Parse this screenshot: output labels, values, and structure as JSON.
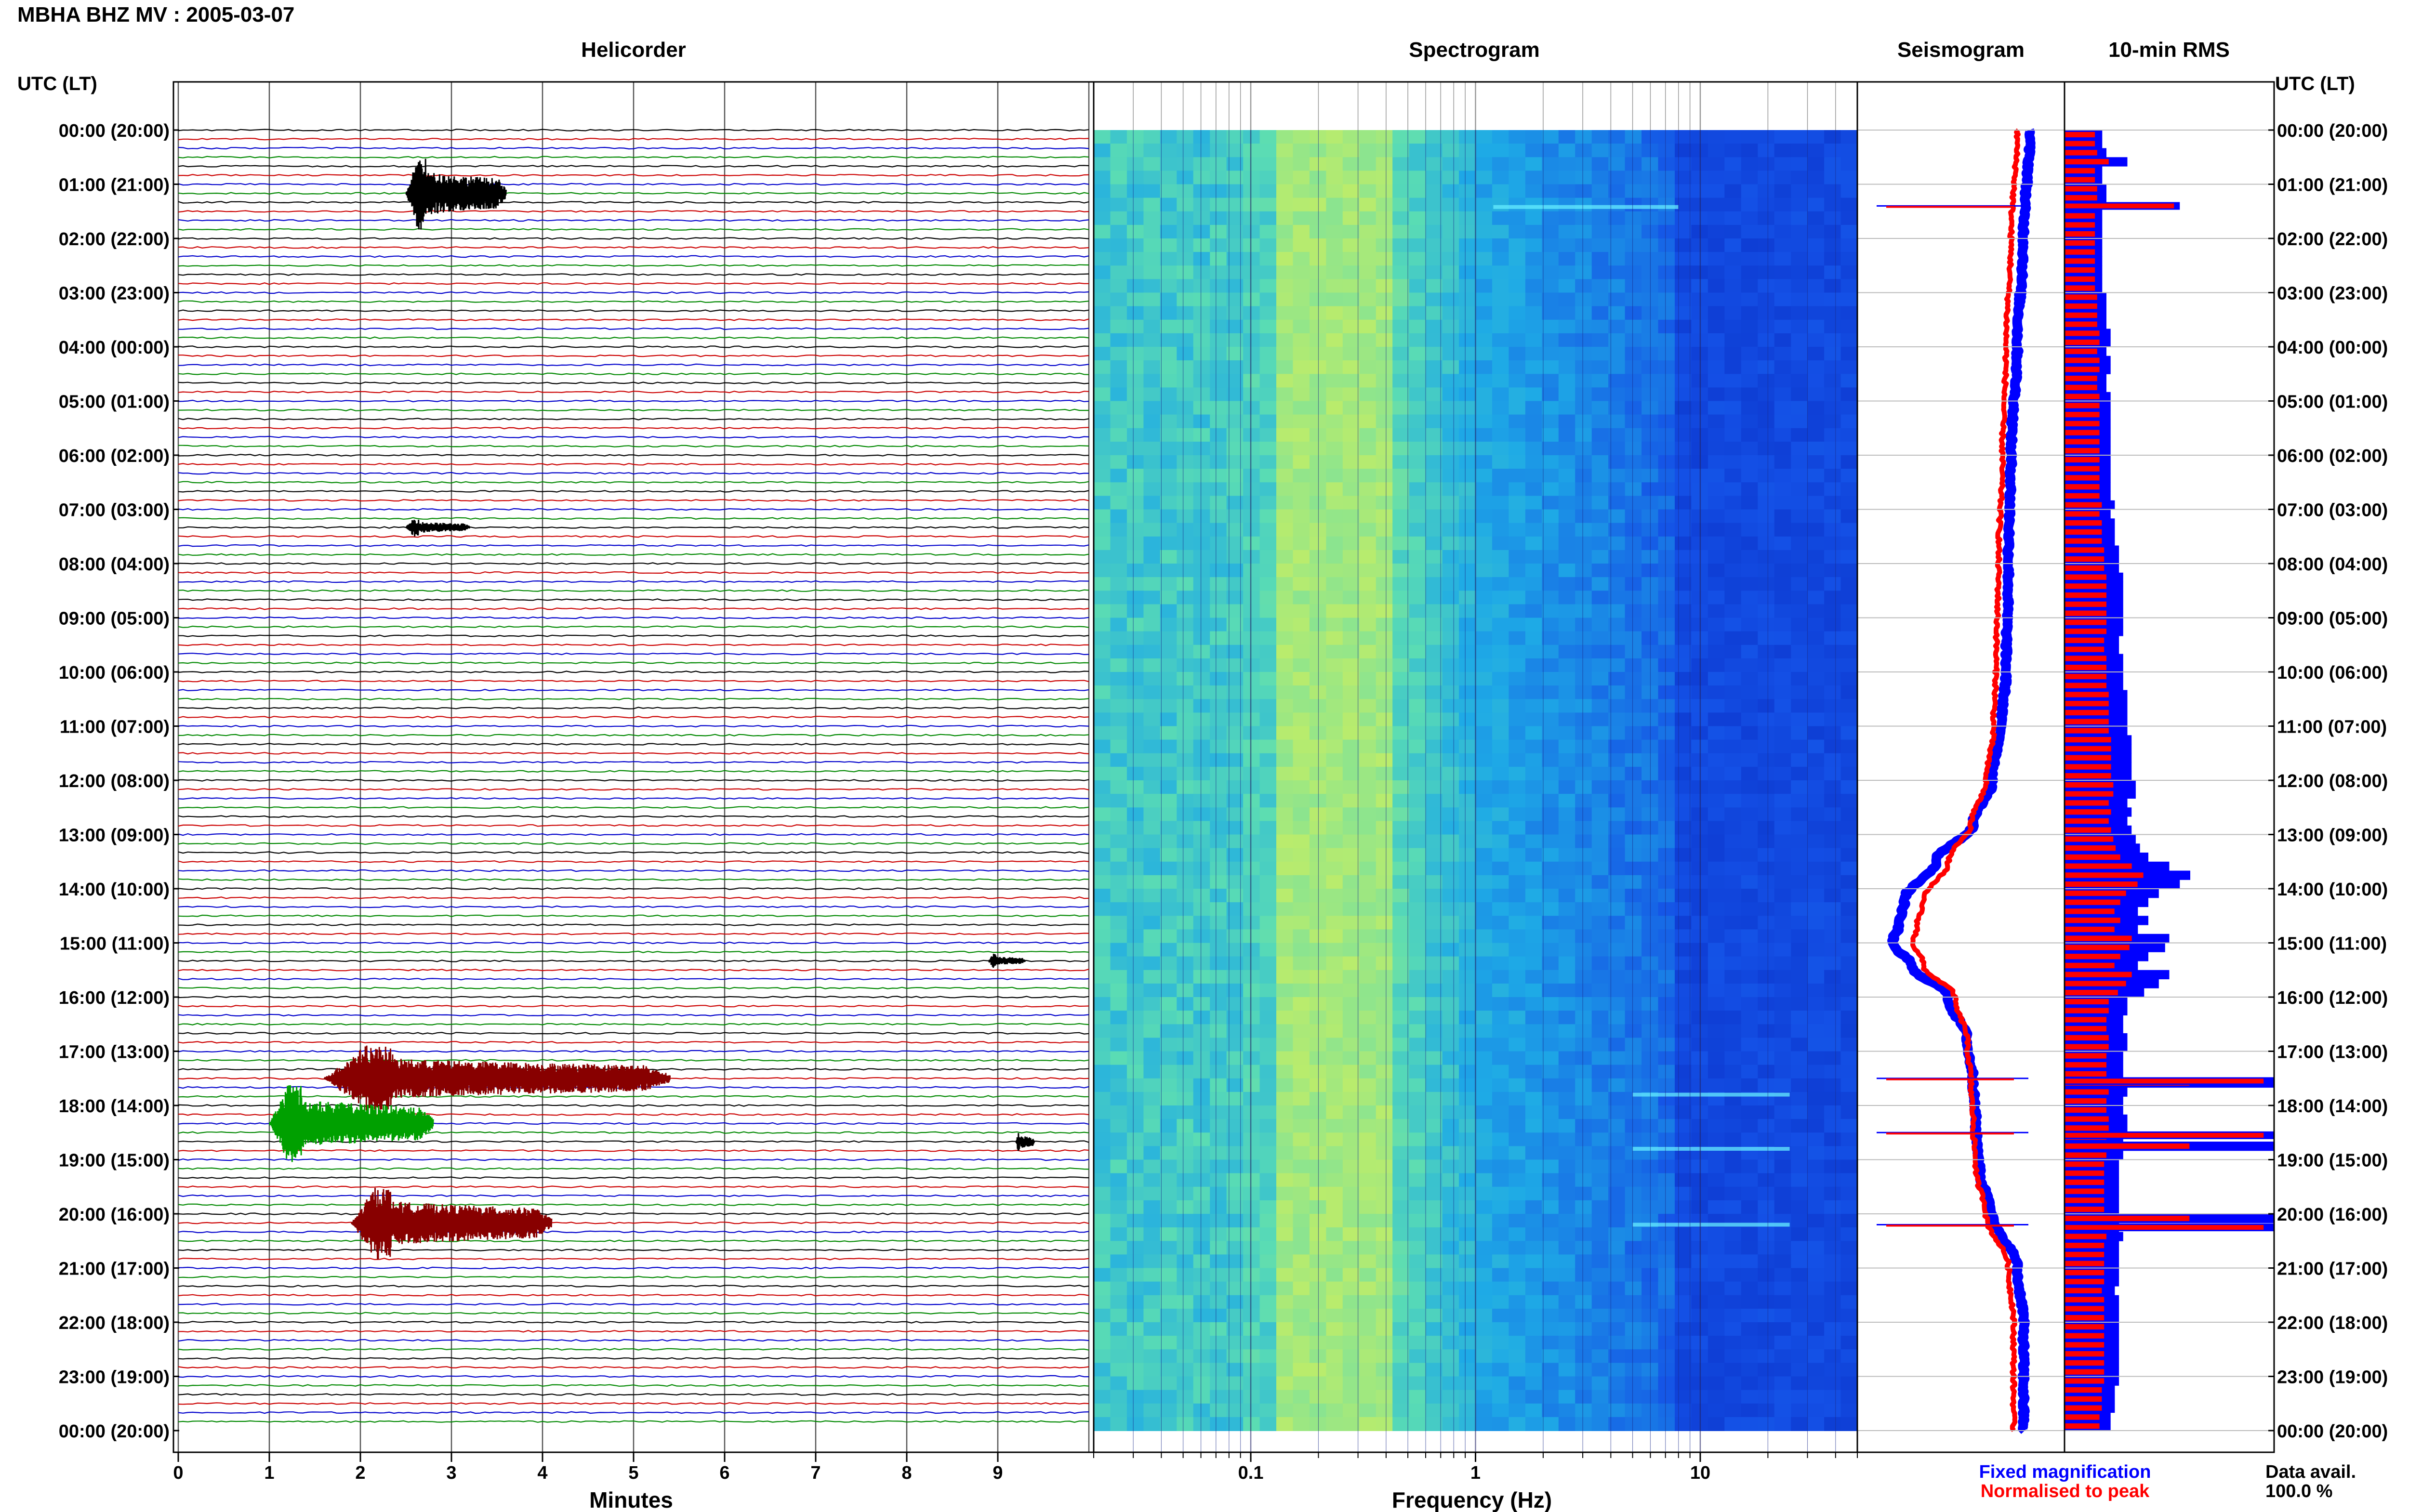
{
  "header": {
    "title": "MBHA BHZ MV : 2005-03-07"
  },
  "panels": {
    "helicorder": {
      "title": "Helicorder",
      "xlabel": "Minutes"
    },
    "spectrogram": {
      "title": "Spectrogram",
      "xlabel": "Frequency (Hz)"
    },
    "seismogram": {
      "title": "Seismogram"
    },
    "rms": {
      "title": "10-min RMS"
    }
  },
  "axes": {
    "left_label": "UTC (LT)",
    "right_label": "UTC (LT)",
    "time_ticks": [
      "00:00 (20:00)",
      "01:00 (21:00)",
      "02:00 (22:00)",
      "03:00 (23:00)",
      "04:00 (00:00)",
      "05:00 (01:00)",
      "06:00 (02:00)",
      "07:00 (03:00)",
      "08:00 (04:00)",
      "09:00 (05:00)",
      "10:00 (06:00)",
      "11:00 (07:00)",
      "12:00 (08:00)",
      "13:00 (09:00)",
      "14:00 (10:00)",
      "15:00 (11:00)",
      "16:00 (12:00)",
      "17:00 (13:00)",
      "18:00 (14:00)",
      "19:00 (15:00)",
      "20:00 (16:00)",
      "21:00 (17:00)",
      "22:00 (18:00)",
      "23:00 (19:00)",
      "00:00 (20:00)"
    ],
    "minute_ticks": [
      "0",
      "1",
      "2",
      "3",
      "4",
      "5",
      "6",
      "7",
      "8",
      "9"
    ],
    "freq_ticks": [
      "0.1",
      "1",
      "10"
    ]
  },
  "legend": {
    "fixed": "Fixed magnification",
    "normalised": "Normalised to peak",
    "fixed_color": "#0000ff",
    "normalised_color": "#ff0000"
  },
  "availability": {
    "label": "Data avail.",
    "value": "100.0 %"
  },
  "colors": {
    "trace_cycle": [
      "#000000",
      "#cc0000",
      "#0000cc",
      "#008800"
    ],
    "event_black": "#000000",
    "event_darkred": "#880000",
    "event_green": "#00a000",
    "spectro_low": "#0000aa",
    "spectro_high": "#ffff55"
  },
  "chart_data": [
    {
      "type": "line",
      "panel": "helicorder",
      "x_unit": "minutes",
      "xlim": [
        0,
        10
      ],
      "y_unit": "hours UTC",
      "ylim": [
        0,
        24
      ],
      "rows_per_hour": 6,
      "events": [
        {
          "hour": 1.17,
          "start_min": 2.5,
          "end_min": 3.6,
          "amp": 1.0,
          "color": "#000000"
        },
        {
          "hour": 7.33,
          "start_min": 2.5,
          "end_min": 3.2,
          "amp": 0.25,
          "color": "#000000"
        },
        {
          "hour": 17.5,
          "start_min": 1.6,
          "end_min": 5.4,
          "amp": 0.9,
          "color": "#880000"
        },
        {
          "hour": 18.33,
          "start_min": 1.0,
          "end_min": 2.8,
          "amp": 1.1,
          "color": "#00a000"
        },
        {
          "hour": 20.17,
          "start_min": 1.9,
          "end_min": 4.1,
          "amp": 1.0,
          "color": "#880000"
        },
        {
          "hour": 18.67,
          "start_min": 9.2,
          "end_min": 9.4,
          "amp": 0.3,
          "color": "#000000"
        },
        {
          "hour": 15.33,
          "start_min": 8.9,
          "end_min": 9.3,
          "amp": 0.2,
          "color": "#000000"
        }
      ]
    },
    {
      "type": "heatmap",
      "panel": "spectrogram",
      "x_scale": "log",
      "xlim": [
        0.02,
        50
      ],
      "ylim": [
        0,
        24
      ],
      "peak_band_hz": [
        0.12,
        0.4
      ],
      "narrowband_events_hz": [
        [
          1.2,
          8,
          1.42
        ],
        [
          5,
          25,
          17.8
        ],
        [
          5,
          25,
          18.8
        ],
        [
          5,
          25,
          20.2
        ]
      ]
    },
    {
      "type": "line",
      "panel": "seismogram",
      "ylim": [
        0,
        24
      ],
      "series": [
        {
          "name": "Fixed magnification",
          "hours": [
            0,
            2,
            4,
            6,
            8,
            10,
            11,
            12,
            12.8,
            13.5,
            14.2,
            14.7,
            15.0,
            15.4,
            16.0,
            16.8,
            17.6,
            18.4,
            19.2,
            20.0,
            21.0,
            22.0,
            24.0
          ],
          "values": [
            0.55,
            0.5,
            0.45,
            0.4,
            0.38,
            0.36,
            0.32,
            0.25,
            0.1,
            -0.2,
            -0.45,
            -0.5,
            -0.55,
            -0.4,
            -0.1,
            0.05,
            0.1,
            0.12,
            0.15,
            0.25,
            0.45,
            0.5,
            0.5
          ]
        },
        {
          "name": "Normalised to peak",
          "hours": [
            0,
            2,
            4,
            6,
            8,
            10,
            11,
            12,
            12.8,
            13.5,
            14.2,
            14.7,
            15.0,
            15.4,
            16.0,
            16.8,
            17.6,
            18.4,
            19.2,
            20.0,
            21.0,
            22.0,
            24.0
          ],
          "values": [
            0.45,
            0.4,
            0.36,
            0.33,
            0.3,
            0.28,
            0.26,
            0.2,
            0.08,
            -0.1,
            -0.3,
            -0.35,
            -0.38,
            -0.3,
            -0.05,
            0.05,
            0.08,
            0.1,
            0.12,
            0.2,
            0.38,
            0.42,
            0.42
          ]
        }
      ],
      "spikes_hours": [
        1.4,
        17.5,
        18.5,
        20.2
      ]
    },
    {
      "type": "bar",
      "panel": "rms",
      "orientation": "horizontal",
      "interval_min": 10,
      "ylim": [
        0,
        24
      ],
      "fixed_profile": [
        0.18,
        0.18,
        0.2,
        0.3,
        0.18,
        0.18,
        0.2,
        0.2,
        0.18,
        0.18,
        0.18,
        0.18,
        0.18,
        0.18,
        0.18,
        0.18,
        0.18,
        0.18,
        0.2,
        0.2,
        0.2,
        0.2,
        0.22,
        0.22,
        0.2,
        0.22,
        0.22,
        0.2,
        0.2,
        0.22,
        0.22,
        0.22,
        0.22,
        0.22,
        0.22,
        0.22,
        0.22,
        0.22,
        0.22,
        0.22,
        0.22,
        0.24,
        0.22,
        0.24,
        0.24,
        0.24,
        0.26,
        0.26,
        0.26,
        0.28,
        0.28,
        0.28,
        0.28,
        0.28,
        0.28,
        0.28,
        0.26,
        0.26,
        0.28,
        0.28,
        0.28,
        0.28,
        0.3,
        0.3,
        0.3,
        0.3,
        0.3,
        0.32,
        0.32,
        0.32,
        0.32,
        0.32,
        0.34,
        0.34,
        0.3,
        0.32,
        0.3,
        0.32,
        0.34,
        0.36,
        0.4,
        0.5,
        0.6,
        0.55,
        0.45,
        0.4,
        0.35,
        0.4,
        0.35,
        0.5,
        0.48,
        0.4,
        0.35,
        0.5,
        0.45,
        0.38,
        0.3,
        0.3,
        0.28,
        0.28,
        0.3,
        0.3,
        0.28,
        0.28,
        0.28,
        1.0,
        0.3,
        0.28,
        0.28,
        0.3,
        0.3,
        0.28,
        1.0,
        0.28,
        0.26,
        0.26,
        0.26,
        0.26,
        0.26,
        0.26,
        1.0,
        0.26,
        0.28,
        0.26,
        0.26,
        0.26,
        0.26,
        0.26,
        0.24,
        0.26,
        0.26,
        0.26,
        0.26,
        0.26,
        0.26,
        0.26,
        0.26,
        0.26,
        0.26,
        0.24,
        0.24,
        0.24,
        0.22,
        0.22
      ],
      "spikes": [
        {
          "hour": 1.4,
          "value": 0.55
        },
        {
          "hour": 17.55,
          "value": 1.0
        },
        {
          "hour": 18.55,
          "value": 1.0
        },
        {
          "hour": 20.25,
          "value": 1.0
        }
      ]
    }
  ]
}
